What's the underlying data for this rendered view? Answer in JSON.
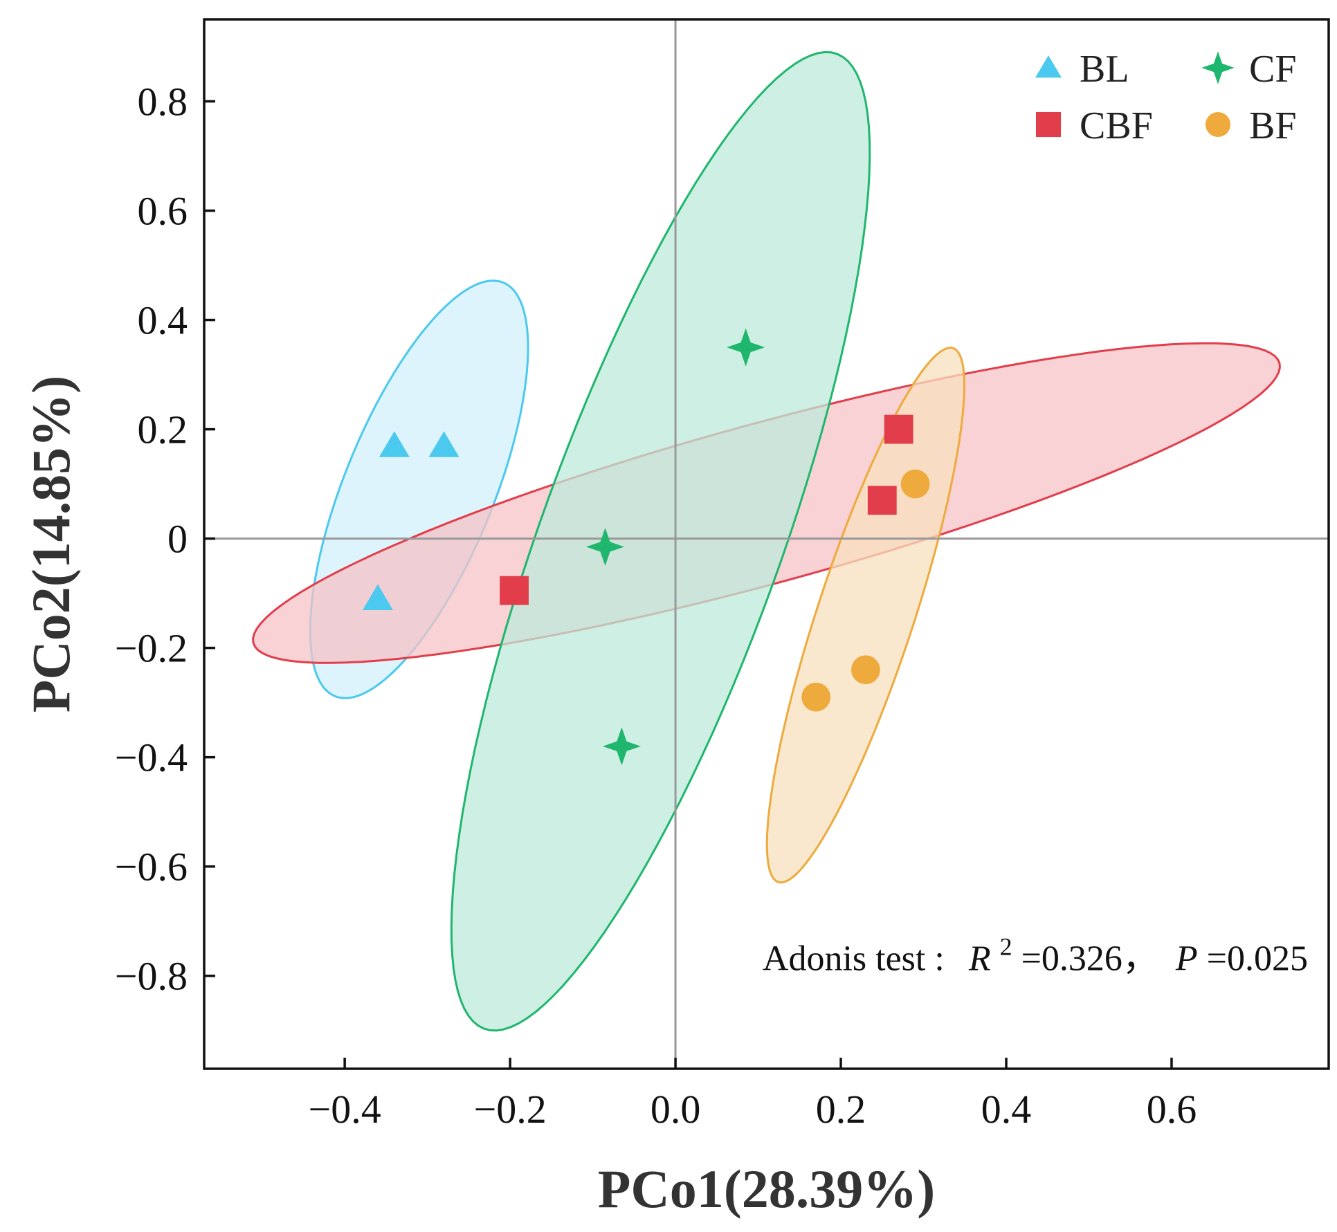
{
  "chart_data": {
    "type": "scatter",
    "title": "",
    "xlabel": "PCo1(28.39%)",
    "ylabel": "PCo2(14.85%)",
    "xlim": [
      -0.57,
      0.79
    ],
    "ylim": [
      -0.97,
      0.95
    ],
    "x_ticks": [
      -0.4,
      -0.2,
      0.0,
      0.2,
      0.4,
      0.6
    ],
    "x_tick_labels": [
      "−0.4",
      "−0.2",
      "0.0",
      "0.2",
      "0.4",
      "0.6"
    ],
    "y_ticks": [
      0.8,
      0.6,
      0.4,
      0.2,
      0,
      -0.2,
      -0.4,
      -0.6,
      -0.8
    ],
    "y_tick_labels": [
      "0.8",
      "0.6",
      "0.4",
      "0.2",
      "0",
      "−0.2",
      "−0.4",
      "−0.6",
      "−0.8"
    ],
    "reference_lines": {
      "x": 0,
      "y": 0
    },
    "grid": false,
    "legend_position": "top-right",
    "series": [
      {
        "name": "BL",
        "marker": "triangle",
        "color": "#4cc9ee",
        "fill": "#d2f0fb",
        "points": [
          [
            -0.34,
            0.17
          ],
          [
            -0.28,
            0.17
          ],
          [
            -0.36,
            -0.11
          ]
        ],
        "ellipse": {
          "center": [
            -0.31,
            0.09
          ],
          "semi_major": 0.393,
          "semi_minor": 0.094,
          "angle_deg": 76
        }
      },
      {
        "name": "CBF",
        "marker": "square",
        "color": "#e23d4a",
        "fill": "#f5c3c7",
        "points": [
          [
            -0.195,
            -0.095
          ],
          [
            0.25,
            0.07
          ],
          [
            0.27,
            0.2
          ]
        ],
        "ellipse": {
          "center": [
            0.11,
            0.065
          ],
          "semi_major": 0.672,
          "semi_minor": 0.14,
          "angle_deg": 23
        }
      },
      {
        "name": "CF",
        "marker": "star4",
        "color": "#1fb66d",
        "fill": "#bdeada",
        "points": [
          [
            0.085,
            0.35
          ],
          [
            -0.085,
            -0.015
          ],
          [
            -0.065,
            -0.38
          ]
        ],
        "ellipse": {
          "center": [
            -0.018,
            -0.005
          ],
          "semi_major": 0.918,
          "semi_minor": 0.15,
          "angle_deg": 77
        }
      },
      {
        "name": "BF",
        "marker": "circle",
        "color": "#eeaa3c",
        "fill": "#f8e0bd",
        "points": [
          [
            0.17,
            -0.29
          ],
          [
            0.23,
            -0.24
          ],
          [
            0.29,
            0.1
          ]
        ],
        "ellipse": {
          "center": [
            0.23,
            -0.14
          ],
          "semi_major": 0.5,
          "semi_minor": 0.06,
          "angle_deg": 78
        }
      }
    ],
    "annotation": {
      "prefix": "Adonis test :",
      "r_symbol": "R",
      "r_exponent": "2",
      "r_value": "=0.326，",
      "p_symbol": "P",
      "p_value": "=0.025"
    }
  }
}
